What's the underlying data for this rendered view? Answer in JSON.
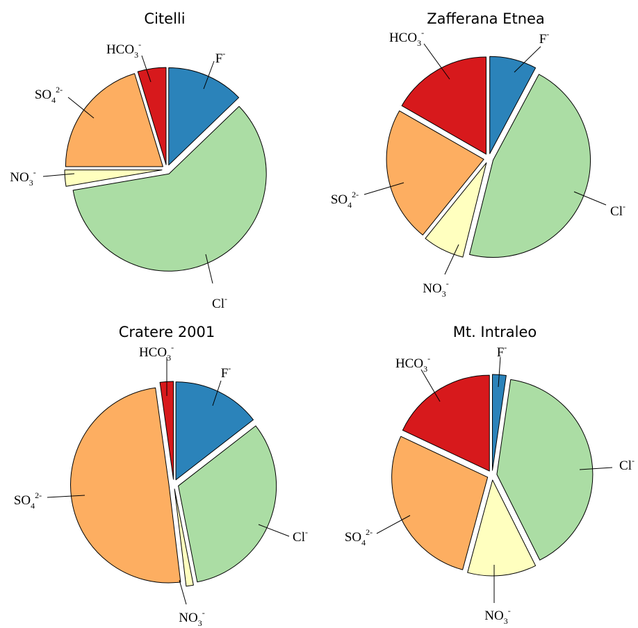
{
  "colors": {
    "F-": "#2b83ba",
    "Cl-": "#abdda4",
    "NO3-": "#ffffbf",
    "SO42-": "#fdae61",
    "HCO3-": "#d7191c"
  },
  "chart_data": [
    {
      "type": "pie",
      "title": "Citelli",
      "slices": [
        {
          "ion": "F-",
          "label": {
            "base": "F",
            "sub": "",
            "sup": "-"
          },
          "value": 12.8
        },
        {
          "ion": "Cl-",
          "label": {
            "base": "Cl",
            "sub": "",
            "sup": "-"
          },
          "value": 59.5
        },
        {
          "ion": "NO3-",
          "label": {
            "base": "NO",
            "sub": "3",
            "sup": "-"
          },
          "value": 2.7
        },
        {
          "ion": "SO42-",
          "label": {
            "base": "SO",
            "sub": "4",
            "sup": "2-"
          },
          "value": 20.3
        },
        {
          "ion": "HCO3-",
          "label": {
            "base": "HCO",
            "sub": "3",
            "sup": "-"
          },
          "value": 4.7
        }
      ]
    },
    {
      "type": "pie",
      "title": "Zafferana Etnea",
      "slices": [
        {
          "ion": "F-",
          "label": {
            "base": "F",
            "sub": "",
            "sup": "-"
          },
          "value": 7.8
        },
        {
          "ion": "Cl-",
          "label": {
            "base": "Cl",
            "sub": "",
            "sup": "-"
          },
          "value": 46.1
        },
        {
          "ion": "NO3-",
          "label": {
            "base": "NO",
            "sub": "3",
            "sup": "-"
          },
          "value": 6.9
        },
        {
          "ion": "SO42-",
          "label": {
            "base": "SO",
            "sub": "4",
            "sup": "2-"
          },
          "value": 22.5
        },
        {
          "ion": "HCO3-",
          "label": {
            "base": "HCO",
            "sub": "3",
            "sup": "-"
          },
          "value": 16.7
        }
      ]
    },
    {
      "type": "pie",
      "title": "Cratere 2001",
      "slices": [
        {
          "ion": "F-",
          "label": {
            "base": "F",
            "sub": "",
            "sup": "-"
          },
          "value": 14.5
        },
        {
          "ion": "Cl-",
          "label": {
            "base": "Cl",
            "sub": "",
            "sup": "-"
          },
          "value": 32.4
        },
        {
          "ion": "NO3-",
          "label": {
            "base": "NO",
            "sub": "3",
            "sup": "-"
          },
          "value": 1.2
        },
        {
          "ion": "SO42-",
          "label": {
            "base": "SO",
            "sub": "4",
            "sup": "2-"
          },
          "value": 49.7
        },
        {
          "ion": "HCO3-",
          "label": {
            "base": "HCO",
            "sub": "3",
            "sup": "-"
          },
          "value": 2.2
        }
      ]
    },
    {
      "type": "pie",
      "title": "Mt. Intraleo",
      "slices": [
        {
          "ion": "F-",
          "label": {
            "base": "F",
            "sub": "",
            "sup": "-"
          },
          "value": 2.3
        },
        {
          "ion": "Cl-",
          "label": {
            "base": "Cl",
            "sub": "",
            "sup": "-"
          },
          "value": 40.3
        },
        {
          "ion": "NO3-",
          "label": {
            "base": "NO",
            "sub": "3",
            "sup": "-"
          },
          "value": 11.6
        },
        {
          "ion": "SO42-",
          "label": {
            "base": "SO",
            "sub": "4",
            "sup": "2-"
          },
          "value": 27.8
        },
        {
          "ion": "HCO3-",
          "label": {
            "base": "HCO",
            "sub": "3",
            "sup": "-"
          },
          "value": 18.0
        }
      ]
    }
  ]
}
